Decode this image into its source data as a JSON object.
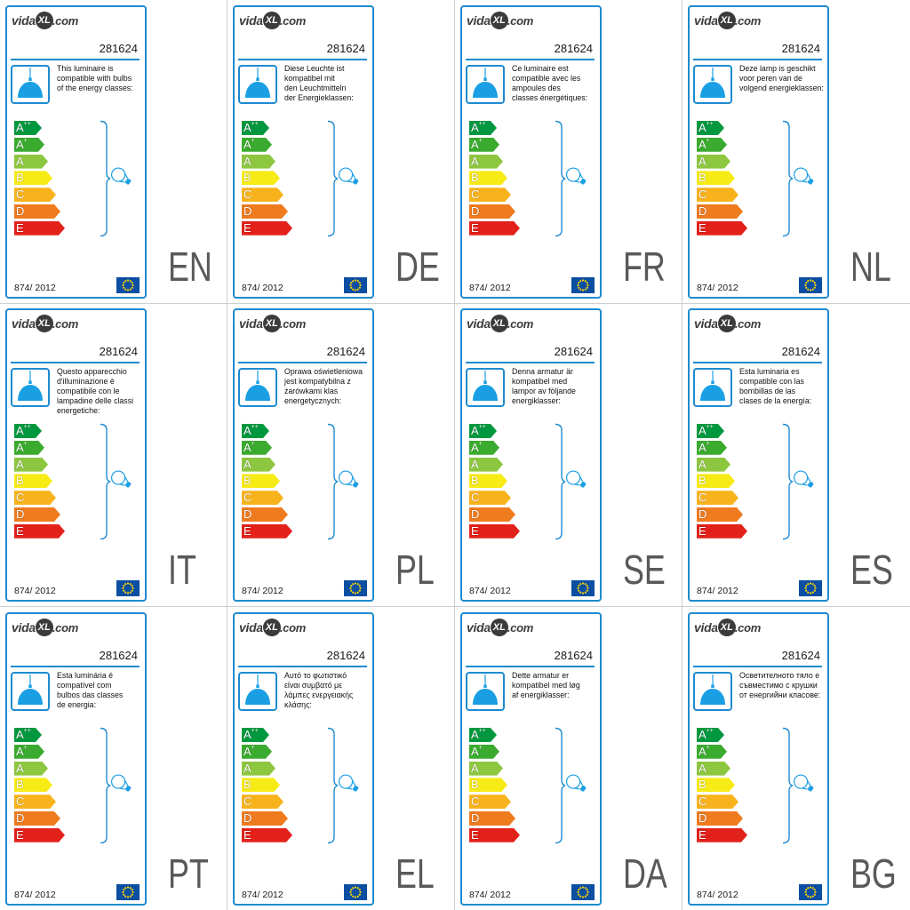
{
  "shared": {
    "brand": {
      "word": "vida",
      "mark": "XL",
      "suffix": ".com"
    },
    "product_code": "281624",
    "regulation": "874/ 2012",
    "energy_classes": [
      {
        "letter": "A",
        "sup": "++",
        "color": "#00983f"
      },
      {
        "letter": "A",
        "sup": "+",
        "color": "#3aab2e"
      },
      {
        "letter": "A",
        "color": "#8dc63f"
      },
      {
        "letter": "B",
        "color": "#f7eb16"
      },
      {
        "letter": "C",
        "color": "#f8b31c"
      },
      {
        "letter": "D",
        "color": "#ef7b1f"
      },
      {
        "letter": "E",
        "color": "#e3211b"
      }
    ],
    "colors": {
      "frame": "#1e8bd0",
      "lamp": "#1a9fe4",
      "logo": "#3b3b3b",
      "flag": "#0b4ea2",
      "stars": "#ffd200",
      "code_text": "#595959"
    },
    "icons": [
      "pendant-lamp-icon",
      "bracket-icon",
      "bulb-icon",
      "eu-flag-icon"
    ]
  },
  "labels": [
    {
      "code": "EN",
      "text": "This luminaire is\ncompatible with bulbs\nof the energy classes:"
    },
    {
      "code": "DE",
      "text": "Diese Leuchte ist\nkompatibel mit\nden Leuchtmitteln\nder Energieklassen:"
    },
    {
      "code": "FR",
      "text": "Ce luminaire est\ncompatible avec les\nampoules des\nclasses énergétiques:"
    },
    {
      "code": "NL",
      "text": "Deze lamp is geschikt\nvoor peren van de\nvolgend energieklassen:"
    },
    {
      "code": "IT",
      "text": "Questo apparecchio\nd'illuminazione è\ncompatibile con le\nlampadine delle classi\nenergetiche:"
    },
    {
      "code": "PL",
      "text": "Oprawa oświetleniowa\njest kompatybilna z\nżarówkami klas\nenergetycznych:"
    },
    {
      "code": "SE",
      "text": "Denna armatur är\nkompatibel med\nlampor av följande\nenergiklasser:"
    },
    {
      "code": "ES",
      "text": "Esta luminaria es\ncompatible con las\nbombillas de las\nclases de la energía:"
    },
    {
      "code": "PT",
      "text": "Esta luminária é\ncompatível com\nbulbos das classes\nde energia:"
    },
    {
      "code": "EL",
      "text": "Αυτό το φωτιστικό\nείναι συμβατό με\nλάμπες ενεργειακής\nκλάσης:"
    },
    {
      "code": "DA",
      "text": "Dette armatur er\nkompatibel med løg\naf energiklasser:"
    },
    {
      "code": "BG",
      "text": "Осветителното тяло е\nсъвместимо с крушки\nот енергийни класове:"
    }
  ]
}
